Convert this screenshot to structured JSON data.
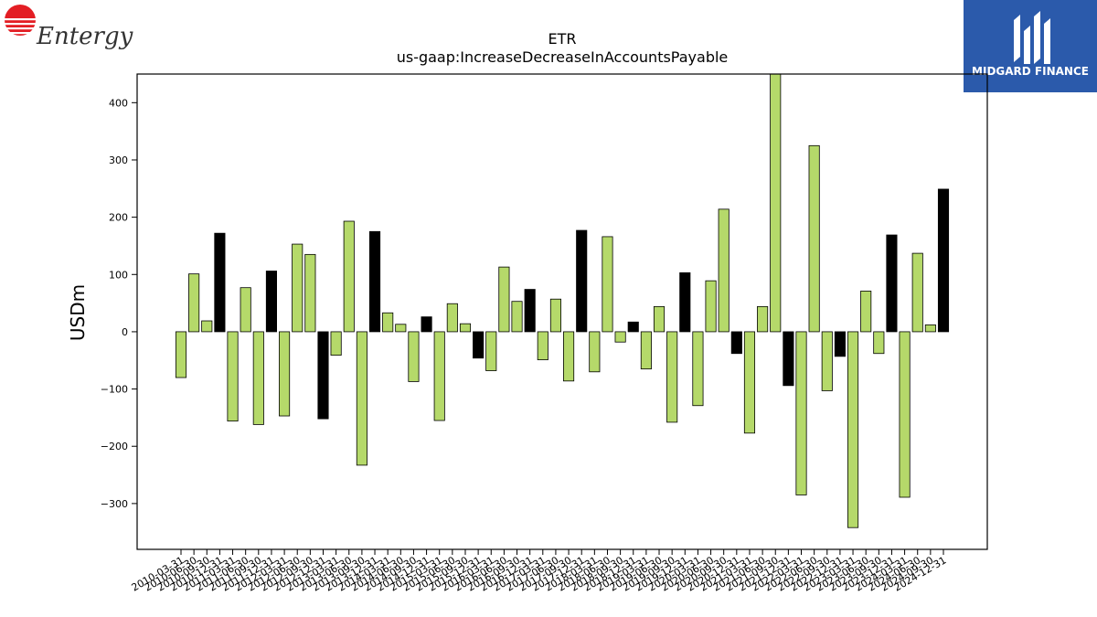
{
  "brand_left": {
    "name": "Entergy",
    "icon": "entergy-sun-logo",
    "color": "#e31e24"
  },
  "brand_right": {
    "name": "MIDGARD FINANCE",
    "icon": "midgard-logo",
    "color": "#2b5aab"
  },
  "chart_data": {
    "type": "bar",
    "title": "ETR",
    "subtitle": "us-gaap:IncreaseDecreaseInAccountsPayable",
    "xlabel": "",
    "ylabel": "USDm",
    "ylim": [
      -380,
      450
    ],
    "yticks": [
      -300,
      -200,
      -100,
      0,
      100,
      200,
      300,
      400
    ],
    "ytick_labels": [
      "−300",
      "−200",
      "−100",
      "0",
      "100",
      "200",
      "300",
      "400"
    ],
    "grid": false,
    "colors": {
      "quarter": "#b5d96a",
      "year_end": "#000000",
      "edge": "#000000"
    },
    "categories": [
      "2010-03-31",
      "2010-06-30",
      "2010-09-30",
      "2010-12-31",
      "2011-03-31",
      "2011-06-30",
      "2011-09-30",
      "2011-12-31",
      "2012-03-31",
      "2012-06-30",
      "2012-09-30",
      "2012-12-31",
      "2013-03-31",
      "2013-06-30",
      "2013-09-30",
      "2013-12-31",
      "2014-03-31",
      "2014-06-30",
      "2014-09-30",
      "2014-12-31",
      "2015-03-31",
      "2015-06-30",
      "2015-09-30",
      "2015-12-31",
      "2016-03-31",
      "2016-06-30",
      "2016-09-30",
      "2016-12-31",
      "2017-03-31",
      "2017-06-30",
      "2017-09-30",
      "2017-12-31",
      "2018-03-31",
      "2018-06-30",
      "2018-09-30",
      "2018-12-31",
      "2019-03-31",
      "2019-06-30",
      "2019-09-30",
      "2019-12-31",
      "2020-03-31",
      "2020-06-30",
      "2020-09-30",
      "2020-12-31",
      "2021-03-31",
      "2021-06-30",
      "2021-09-30",
      "2021-12-31",
      "2022-03-31",
      "2022-06-30",
      "2022-09-30",
      "2022-12-31",
      "2023-03-31",
      "2023-06-30",
      "2023-09-30",
      "2023-12-31",
      "2024-03-31",
      "2024-06-30",
      "2024-09-30",
      "2024-12-31"
    ],
    "values": [
      -80,
      101,
      19,
      172,
      -156,
      77,
      -162,
      106,
      -147,
      153,
      135,
      -152,
      -41,
      193,
      -233,
      175,
      33,
      13,
      -87,
      26,
      -155,
      49,
      14,
      -46,
      -68,
      113,
      53,
      74,
      -49,
      57,
      -86,
      177,
      -70,
      166,
      -18,
      17,
      -65,
      44,
      -158,
      103,
      -129,
      89,
      214,
      -38,
      -177,
      44,
      450,
      -94,
      -285,
      325,
      -103,
      -43,
      -342,
      71,
      -38,
      169,
      -289,
      137,
      12,
      249
    ],
    "year_end": [
      false,
      false,
      false,
      true,
      false,
      false,
      false,
      true,
      false,
      false,
      false,
      true,
      false,
      false,
      false,
      true,
      false,
      false,
      false,
      true,
      false,
      false,
      false,
      true,
      false,
      false,
      false,
      true,
      false,
      false,
      false,
      true,
      false,
      false,
      false,
      true,
      false,
      false,
      false,
      true,
      false,
      false,
      false,
      true,
      false,
      false,
      false,
      true,
      false,
      false,
      false,
      true,
      false,
      false,
      false,
      true,
      false,
      false,
      false,
      true
    ]
  }
}
